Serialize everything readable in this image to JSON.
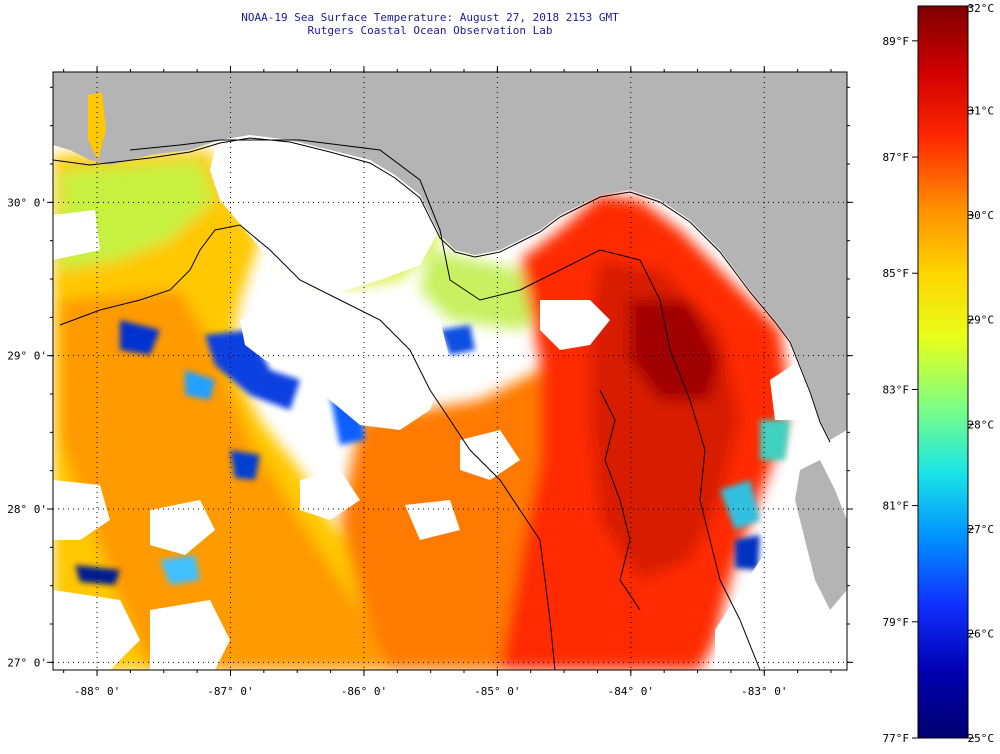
{
  "title": {
    "line1": "NOAA-19 Sea Surface Temperature:  August 27, 2018 2153 GMT",
    "line2": "Rutgers Coastal Ocean Observation Lab"
  },
  "map": {
    "lon_range": [
      -88.33,
      -82.38
    ],
    "lat_range": [
      26.95,
      30.85
    ],
    "lon_ticks": [
      {
        "value": -88,
        "label": "-88° 0'"
      },
      {
        "value": -87,
        "label": "-87° 0'"
      },
      {
        "value": -86,
        "label": "-86° 0'"
      },
      {
        "value": -85,
        "label": "-85° 0'"
      },
      {
        "value": -84,
        "label": "-84° 0'"
      },
      {
        "value": -83,
        "label": "-83° 0'"
      }
    ],
    "lat_ticks": [
      {
        "value": 30,
        "label": "30° 0'"
      },
      {
        "value": 29,
        "label": "29° 0'"
      },
      {
        "value": 28,
        "label": "28° 0'"
      },
      {
        "value": 27,
        "label": "27° 0'"
      }
    ],
    "land_color": "#b4b4b4",
    "nodata_color": "#ffffff",
    "gridlines": "dotted"
  },
  "colorbar": {
    "celsius": [
      {
        "value": 32,
        "label": "32°C"
      },
      {
        "value": 31,
        "label": "31°C"
      },
      {
        "value": 30,
        "label": "30°C"
      },
      {
        "value": 29,
        "label": "29°C"
      },
      {
        "value": 28,
        "label": "28°C"
      },
      {
        "value": 27,
        "label": "27°C"
      },
      {
        "value": 26,
        "label": "26°C"
      },
      {
        "value": 25,
        "label": "25°C"
      }
    ],
    "fahrenheit": [
      {
        "value": 89,
        "label": "89°F"
      },
      {
        "value": 87,
        "label": "87°F"
      },
      {
        "value": 85,
        "label": "85°F"
      },
      {
        "value": 83,
        "label": "83°F"
      },
      {
        "value": 81,
        "label": "81°F"
      },
      {
        "value": 79,
        "label": "79°F"
      },
      {
        "value": 77,
        "label": "77°F"
      }
    ],
    "colors": [
      "#7f0000",
      "#d00000",
      "#ff2a00",
      "#ff8c00",
      "#ffd400",
      "#e6ff1a",
      "#80ff80",
      "#1ae6e6",
      "#0090ff",
      "#1030ff",
      "#0000b0",
      "#000070"
    ]
  }
}
